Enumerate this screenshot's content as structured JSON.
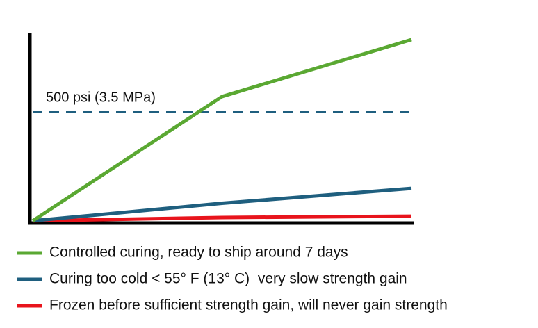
{
  "chart_data": {
    "type": "line",
    "categories": [
      null,
      null,
      null
    ],
    "ylim": [
      0,
      850
    ],
    "series": [
      {
        "name": "Controlled curing, ready to ship around 7 days",
        "color": "#5aa832",
        "values": [
          10,
          569,
          825
        ]
      },
      {
        "name": "Curing too cold < 55° F (13° C)  very slow strength gain",
        "color": "#1f5f7f",
        "values": [
          10,
          89,
          156
        ]
      },
      {
        "name": "Frozen before sufficient strength gain, will never gain strength",
        "color": "#e8141c",
        "values": [
          10,
          25,
          31
        ]
      }
    ],
    "reference_lines": [
      {
        "value": 500,
        "label": "500 psi (3.5 MPa)",
        "color": "#1f5f7f"
      }
    ],
    "legend": "bottom"
  }
}
